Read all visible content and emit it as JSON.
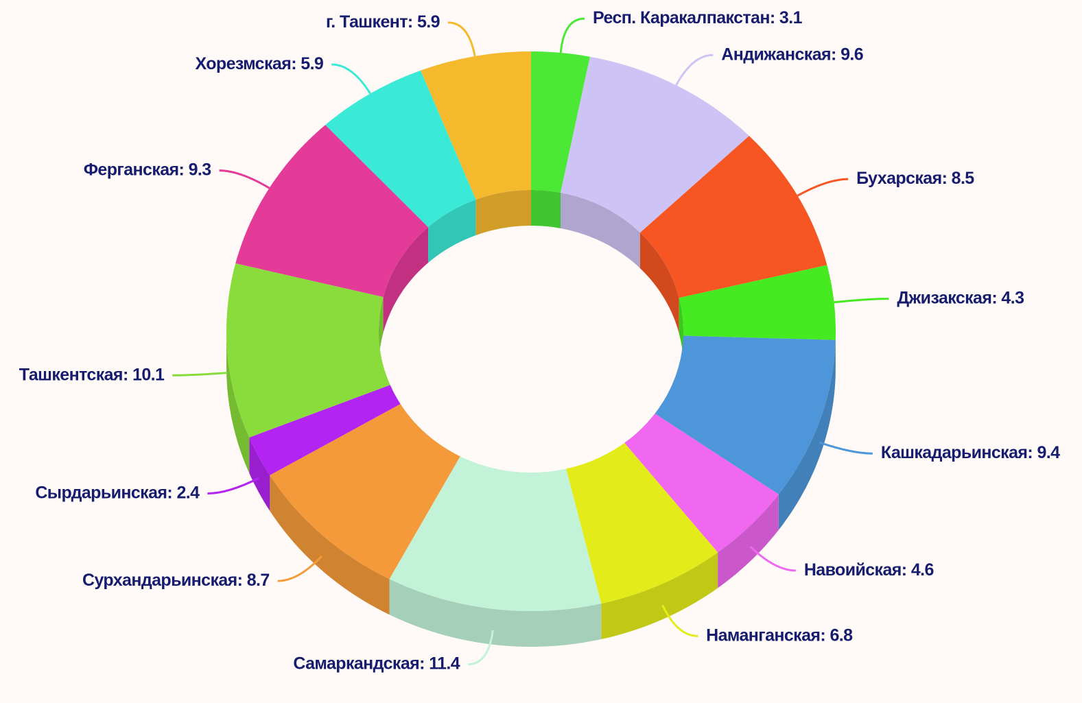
{
  "chart_data": {
    "type": "pie",
    "donut": true,
    "three_d": true,
    "label_separator": ": ",
    "categories": [
      "Респ. Каракалпакстан",
      "Андижанская",
      "Бухарская",
      "Джизакская",
      "Кашкадарьинская",
      "Навоийская",
      "Наманганская",
      "Самаркандская",
      "Сурхандарьинская",
      "Сырдарьинская",
      "Ташкентская",
      "Ферганская",
      "Хорезмская",
      "г. Ташкент"
    ],
    "values": [
      3.1,
      9.6,
      8.5,
      4.3,
      9.4,
      4.6,
      6.8,
      11.4,
      8.7,
      2.4,
      10.1,
      9.3,
      5.9,
      5.9
    ],
    "colors": [
      "#4be936",
      "#cdc3f4",
      "#f75623",
      "#45ea20",
      "#4e96da",
      "#ef68ef",
      "#e3ec1a",
      "#c2f3d8",
      "#f59a3a",
      "#b323f2",
      "#89dc3b",
      "#e43a98",
      "#3ae9d6",
      "#f5b92e"
    ]
  }
}
